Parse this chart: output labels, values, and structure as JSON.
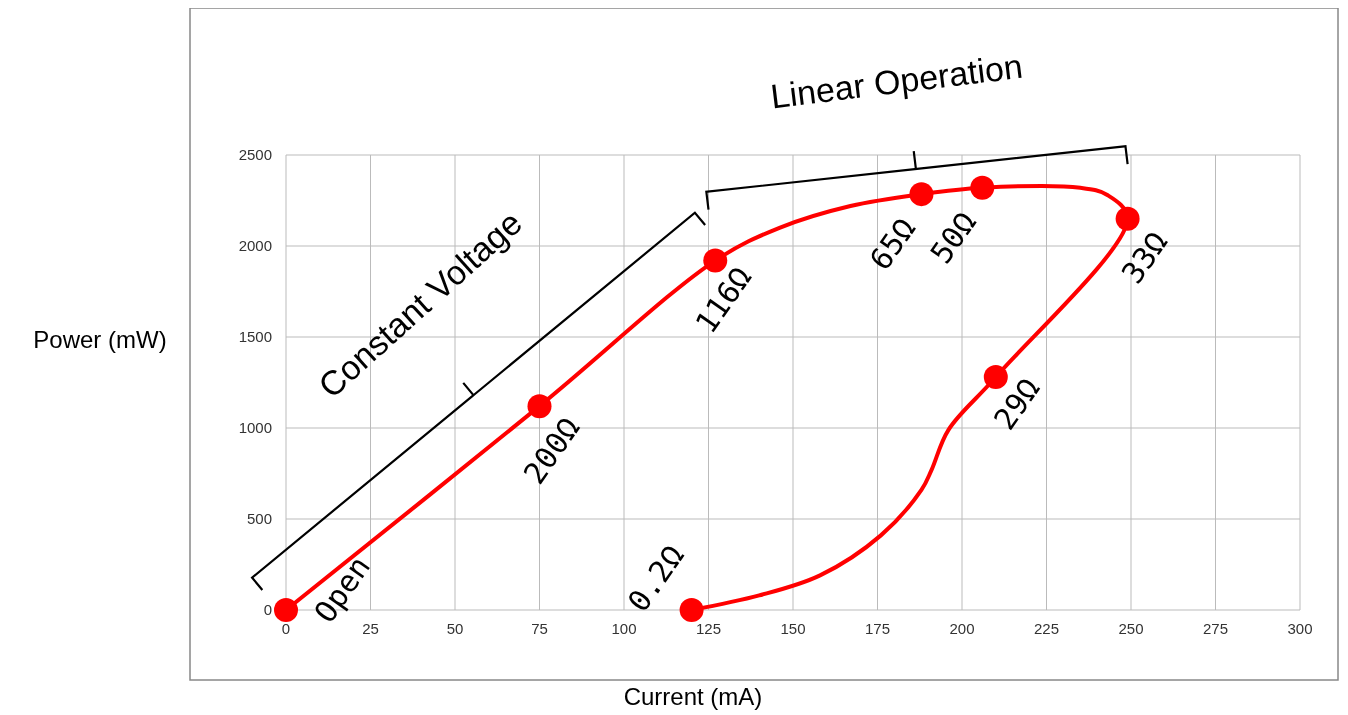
{
  "chart_data": {
    "type": "line",
    "xlabel": "Current (mA)",
    "ylabel": "Power (mW)",
    "xlim": [
      0,
      300
    ],
    "ylim": [
      0,
      2500
    ],
    "xticks": [
      0,
      25,
      50,
      75,
      100,
      125,
      150,
      175,
      200,
      225,
      250,
      275,
      300
    ],
    "yticks": [
      0,
      500,
      1000,
      1500,
      2000,
      2500
    ],
    "grid": true,
    "series": [
      {
        "type": "line",
        "color": "#ff0000",
        "marker": "none",
        "x": [
          0,
          75,
          127,
          146,
          167,
          188,
          206,
          235,
          243,
          249,
          210,
          196,
          191,
          188,
          176,
          158,
          140,
          120
        ],
        "values": [
          0,
          1120,
          1920,
          2100,
          2220,
          2285,
          2320,
          2320,
          2280,
          2150,
          1280,
          990,
          770,
          660,
          410,
          190,
          80,
          0
        ]
      },
      {
        "type": "scatter",
        "color": "#ff0000",
        "marker": "circle",
        "x": [
          0,
          75,
          127,
          188,
          206,
          249,
          210,
          120
        ],
        "values": [
          0,
          1120,
          1920,
          2285,
          2320,
          2150,
          1280,
          0
        ]
      }
    ],
    "annotations": [
      {
        "text": "Open",
        "x": 0,
        "y": 0
      },
      {
        "text": "200Ω",
        "x": 75,
        "y": 1120
      },
      {
        "text": "116Ω",
        "x": 127,
        "y": 1920
      },
      {
        "text": "65Ω",
        "x": 188,
        "y": 2285
      },
      {
        "text": "50Ω",
        "x": 206,
        "y": 2320
      },
      {
        "text": "33Ω",
        "x": 249,
        "y": 2150
      },
      {
        "text": "29Ω",
        "x": 210,
        "y": 1280
      },
      {
        "text": "0.2Ω",
        "x": 120,
        "y": 0
      },
      "Constant Voltage",
      "Linear Operation"
    ]
  }
}
